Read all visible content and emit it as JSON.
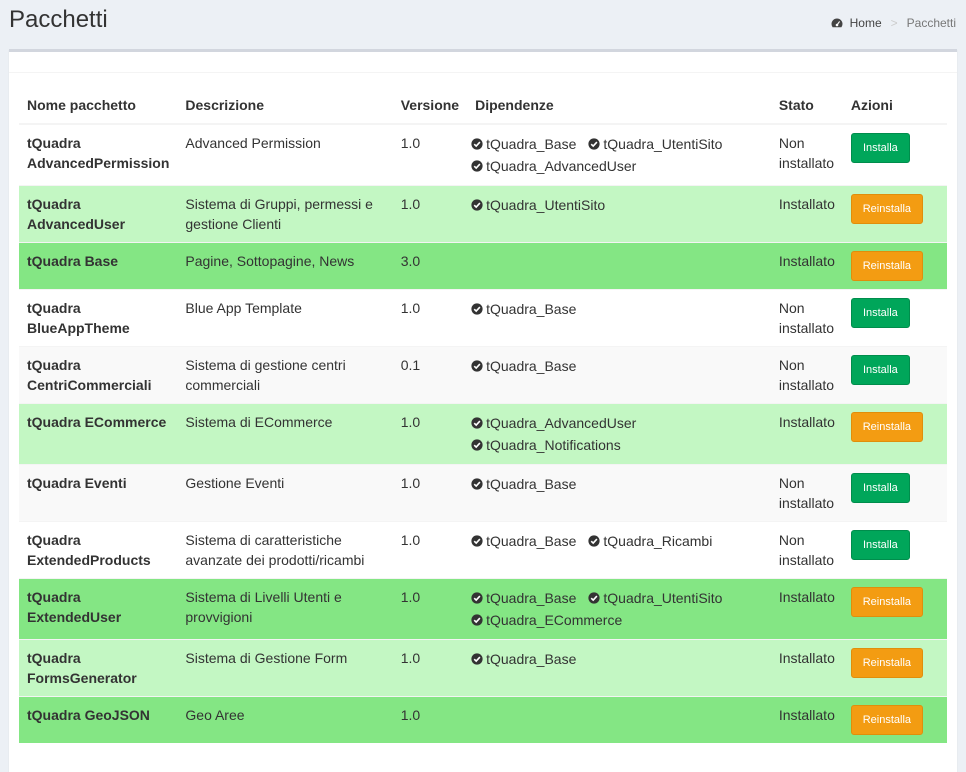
{
  "header": {
    "title": "Pacchetti",
    "breadcrumb_home": "Home",
    "breadcrumb_current": "Pacchetti",
    "breadcrumb_separator": ">"
  },
  "table": {
    "columns": [
      "Nome pacchetto",
      "Descrizione",
      "Versione",
      "Dipendenze",
      "Stato",
      "Azioni"
    ],
    "rows": [
      {
        "name_line1": "tQuadra",
        "name_line2": "AdvancedPermission",
        "description": "Advanced Permission",
        "version": "1.0",
        "dependencies": [
          "tQuadra_Base",
          "tQuadra_UtentiSito",
          "tQuadra_AdvancedUser"
        ],
        "status": "Non installato",
        "action": "Installa",
        "row_style": "white"
      },
      {
        "name_line1": "tQuadra",
        "name_line2": "AdvancedUser",
        "description": "Sistema di Gruppi, permessi e gestione Clienti",
        "version": "1.0",
        "dependencies": [
          "tQuadra_UtentiSito"
        ],
        "status": "Installato",
        "action": "Reinstalla",
        "row_style": "light"
      },
      {
        "name_line1": "tQuadra Base",
        "name_line2": "",
        "description": "Pagine, Sottopagine, News",
        "version": "3.0",
        "dependencies": [],
        "status": "Installato",
        "action": "Reinstalla",
        "row_style": "dark"
      },
      {
        "name_line1": "tQuadra",
        "name_line2": "BlueAppTheme",
        "description": "Blue App Template",
        "version": "1.0",
        "dependencies": [
          "tQuadra_Base"
        ],
        "status": "Non installato",
        "action": "Installa",
        "row_style": "white"
      },
      {
        "name_line1": "tQuadra",
        "name_line2": "CentriCommerciali",
        "description": "Sistema di gestione centri commerciali",
        "version": "0.1",
        "dependencies": [
          "tQuadra_Base"
        ],
        "status": "Non installato",
        "action": "Installa",
        "row_style": "grey"
      },
      {
        "name_line1": "tQuadra ECommerce",
        "name_line2": "",
        "description": "Sistema di ECommerce",
        "version": "1.0",
        "dependencies": [
          "tQuadra_AdvancedUser",
          "tQuadra_Notifications"
        ],
        "status": "Installato",
        "action": "Reinstalla",
        "row_style": "light"
      },
      {
        "name_line1": "tQuadra Eventi",
        "name_line2": "",
        "description": "Gestione Eventi",
        "version": "1.0",
        "dependencies": [
          "tQuadra_Base"
        ],
        "status": "Non installato",
        "action": "Installa",
        "row_style": "grey"
      },
      {
        "name_line1": "tQuadra",
        "name_line2": "ExtendedProducts",
        "description": "Sistema di caratteristiche avanzate dei prodotti/ricambi",
        "version": "1.0",
        "dependencies": [
          "tQuadra_Base",
          "tQuadra_Ricambi"
        ],
        "status": "Non installato",
        "action": "Installa",
        "row_style": "white"
      },
      {
        "name_line1": "tQuadra",
        "name_line2": "ExtendedUser",
        "description": "Sistema di Livelli Utenti e provvigioni",
        "version": "1.0",
        "dependencies": [
          "tQuadra_Base",
          "tQuadra_UtentiSito",
          "tQuadra_ECommerce"
        ],
        "status": "Installato",
        "action": "Reinstalla",
        "row_style": "dark"
      },
      {
        "name_line1": "tQuadra",
        "name_line2": "FormsGenerator",
        "description": "Sistema di Gestione Form",
        "version": "1.0",
        "dependencies": [
          "tQuadra_Base"
        ],
        "status": "Installato",
        "action": "Reinstalla",
        "row_style": "light"
      },
      {
        "name_line1": "tQuadra GeoJSON",
        "name_line2": "",
        "description": "Geo Aree",
        "version": "1.0",
        "dependencies": [],
        "status": "Installato",
        "action": "Reinstalla",
        "row_style": "dark"
      }
    ]
  },
  "colors": {
    "install_button": "#00a65a",
    "reinstall_button": "#f39c12",
    "installed_light_row": "#c3f7c3",
    "installed_dark_row": "#84e684"
  },
  "icons": {
    "breadcrumb_home": "dashboard-gauge-icon",
    "dependency": "check-circle-icon"
  }
}
